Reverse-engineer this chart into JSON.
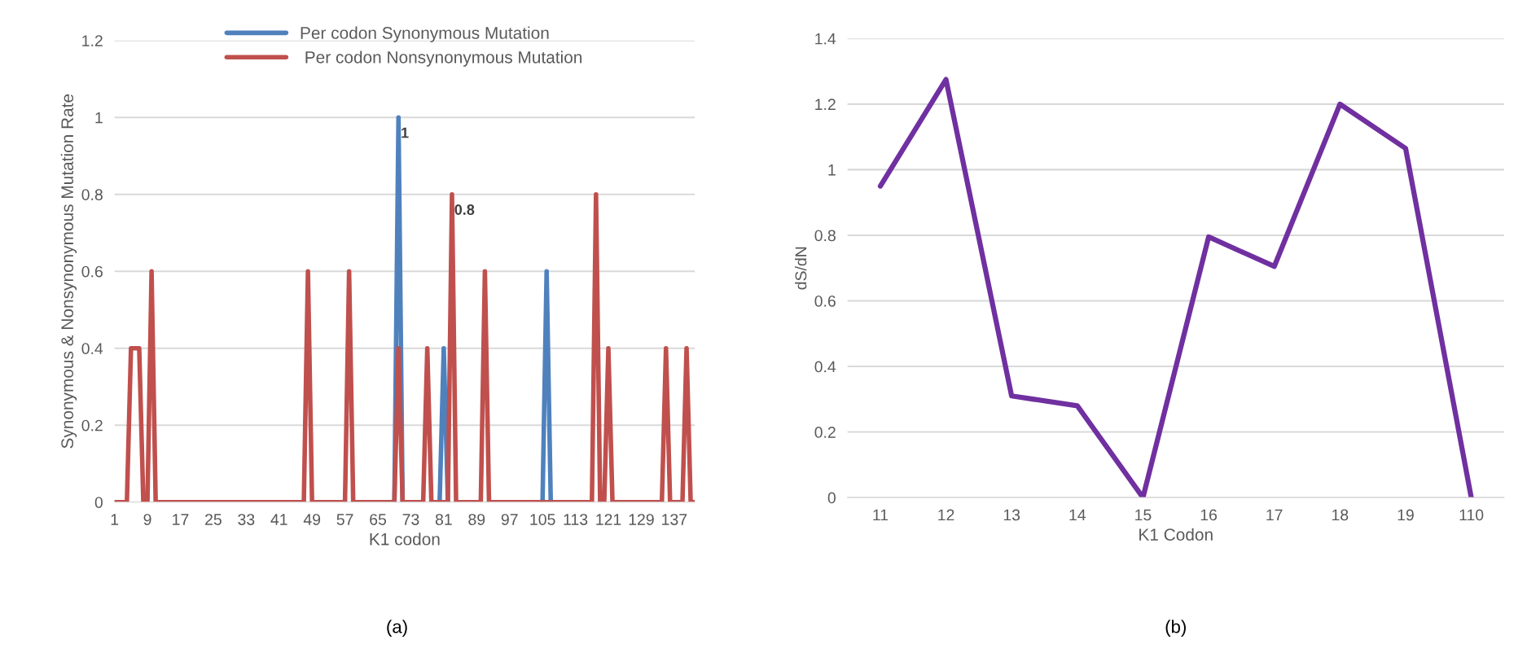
{
  "chart_data": [
    {
      "type": "line",
      "ylabel": "Synonymous & Nonsynonymous Mutation Rate",
      "xlabel": "K1 codon",
      "x": [
        1,
        2,
        3,
        4,
        5,
        6,
        7,
        8,
        9,
        10,
        11,
        12,
        13,
        14,
        15,
        16,
        17,
        18,
        19,
        20,
        21,
        22,
        23,
        24,
        25,
        26,
        27,
        28,
        29,
        30,
        31,
        32,
        33,
        34,
        35,
        36,
        37,
        38,
        39,
        40,
        41,
        42,
        43,
        44,
        45,
        46,
        47,
        48,
        49,
        50,
        51,
        52,
        53,
        54,
        55,
        56,
        57,
        58,
        59,
        60,
        61,
        62,
        63,
        64,
        65,
        66,
        67,
        68,
        69,
        70,
        71,
        72,
        73,
        74,
        75,
        76,
        77,
        78,
        79,
        80,
        81,
        82,
        83,
        84,
        85,
        86,
        87,
        88,
        89,
        90,
        91,
        92,
        93,
        94,
        95,
        96,
        97,
        98,
        99,
        100,
        101,
        102,
        103,
        104,
        105,
        106,
        107,
        108,
        109,
        110,
        111,
        112,
        113,
        114,
        115,
        116,
        117,
        118,
        119,
        120,
        121,
        122,
        123,
        124,
        125,
        126,
        127,
        128,
        129,
        130,
        131,
        132,
        133,
        134,
        135,
        136,
        137,
        138,
        139,
        140,
        141,
        142
      ],
      "series": [
        {
          "name": "Per codon Synonymous Mutation",
          "color": "#4f81bd",
          "x": [
            69,
            70,
            71,
            75,
            80,
            81,
            82,
            90,
            105,
            106,
            107
          ],
          "values": [
            0,
            1,
            0,
            null,
            0,
            0.4,
            0,
            null,
            0,
            0.6,
            0
          ]
        },
        {
          "name": " Per codon Nonsynonymous Mutation",
          "color": "#c0504d",
          "values": [
            0,
            0,
            0,
            0,
            0.4,
            0.4,
            0.4,
            0,
            0,
            0.6,
            0,
            0,
            0,
            0,
            0,
            0,
            0,
            0,
            0,
            0,
            0,
            0,
            0,
            0,
            0,
            0,
            0,
            0,
            0,
            0,
            0,
            0,
            0,
            0,
            0,
            0,
            0,
            0,
            0,
            0,
            0,
            0,
            0,
            0,
            0,
            0,
            0,
            0.6,
            0,
            0,
            0,
            0,
            0,
            0,
            0,
            0,
            0,
            0.6,
            0,
            0,
            0,
            0,
            0,
            0,
            0,
            0,
            0,
            0,
            0,
            0.4,
            0,
            0,
            0,
            0,
            0,
            0,
            0.4,
            0,
            0,
            0,
            0,
            0,
            0.8,
            0,
            0,
            0,
            0,
            0,
            0,
            0,
            0.6,
            0,
            0,
            0,
            0,
            0,
            0,
            0,
            0,
            0,
            0,
            0,
            0,
            0,
            0,
            0,
            0,
            0,
            0,
            0,
            0,
            0,
            0,
            0,
            0,
            0,
            0,
            0.8,
            0,
            0,
            0.4,
            0,
            0,
            0,
            0,
            0,
            0,
            0,
            0,
            0,
            0,
            0,
            0,
            0,
            0.4,
            0,
            0,
            0,
            0,
            0.4,
            0,
            0
          ]
        }
      ],
      "xlim": [
        1,
        142
      ],
      "xticks": [
        1,
        9,
        17,
        25,
        33,
        41,
        49,
        57,
        65,
        73,
        81,
        89,
        97,
        105,
        113,
        121,
        129,
        137
      ],
      "ylim": [
        0,
        1.2
      ],
      "yticks": [
        0,
        0.2,
        0.4,
        0.6,
        0.8,
        1,
        1.2
      ],
      "grid": "y",
      "legend": "top",
      "annotations": [
        {
          "text": "1",
          "x": 70,
          "y": 1
        },
        {
          "text": "0.8",
          "x": 83,
          "y": 0.8
        },
        "(a)"
      ]
    },
    {
      "type": "line",
      "ylabel": "dS/dN",
      "xlabel": "K1 Codon",
      "categories": [
        "11",
        "12",
        "13",
        "14",
        "15",
        "16",
        "17",
        "18",
        "19",
        "110"
      ],
      "series": [
        {
          "color": "#7030a0",
          "values": [
            0.95,
            1.275,
            0.31,
            0.28,
            0,
            0.795,
            0.705,
            1.2,
            1.065,
            0
          ]
        }
      ],
      "ylim": [
        0,
        1.4
      ],
      "yticks": [
        0,
        0.2,
        0.4,
        0.6,
        0.8,
        1,
        1.2,
        1.4
      ],
      "grid": "y",
      "annotations": [
        "(b)"
      ]
    }
  ]
}
